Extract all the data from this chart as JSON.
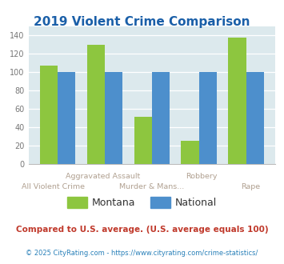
{
  "title": "2019 Violent Crime Comparison",
  "categories": [
    "All Violent Crime",
    "Aggravated Assault",
    "Murder & Mans...",
    "Robbery",
    "Rape"
  ],
  "montana_values": [
    107,
    130,
    51,
    25,
    138
  ],
  "national_values": [
    100,
    100,
    100,
    100,
    100
  ],
  "montana_color": "#8dc63f",
  "national_color": "#4d8fcc",
  "background_color": "#dce9ed",
  "ylim": [
    0,
    150
  ],
  "yticks": [
    0,
    20,
    40,
    60,
    80,
    100,
    120,
    140
  ],
  "legend_montana": "Montana",
  "legend_national": "National",
  "footnote1": "Compared to U.S. average. (U.S. average equals 100)",
  "footnote2": "© 2025 CityRating.com - https://www.cityrating.com/crime-statistics/",
  "title_color": "#1a5fa8",
  "footnote1_color": "#c0392b",
  "footnote2_color": "#2980b9",
  "xtick_color": "#b0a090",
  "ytick_color": "#777777"
}
